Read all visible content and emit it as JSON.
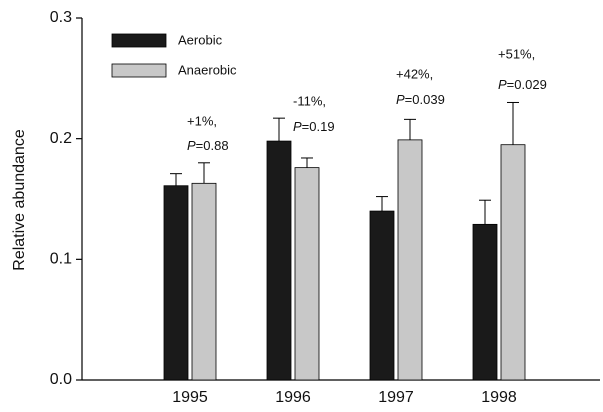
{
  "chart_data": {
    "type": "bar",
    "y_label": "Relative abundance",
    "categories": [
      "1995",
      "1996",
      "1997",
      "1998"
    ],
    "series": [
      {
        "name": "Aerobic",
        "color": "#1a1a1a",
        "values": [
          0.161,
          0.198,
          0.14,
          0.129
        ],
        "errors": [
          0.01,
          0.019,
          0.012,
          0.02
        ]
      },
      {
        "name": "Anaerobic",
        "color": "#c8c8c8",
        "values": [
          0.163,
          0.176,
          0.199,
          0.195
        ],
        "errors": [
          0.017,
          0.008,
          0.017,
          0.035
        ]
      }
    ],
    "annotations": [
      {
        "change": "+1%,",
        "p": [
          "P",
          "=0.88"
        ]
      },
      {
        "change": "-11%,",
        "p": [
          "P",
          "=0.19"
        ]
      },
      {
        "change": "+42%,",
        "p": [
          "P",
          "=0.039"
        ]
      },
      {
        "change": "+51%,",
        "p": [
          "P",
          "=0.029"
        ]
      }
    ],
    "ylim": [
      0,
      0.3
    ],
    "yticks": [
      {
        "value": 0,
        "label": "0.0"
      },
      0.1,
      0.2,
      0.3
    ],
    "legend": "upper left"
  }
}
